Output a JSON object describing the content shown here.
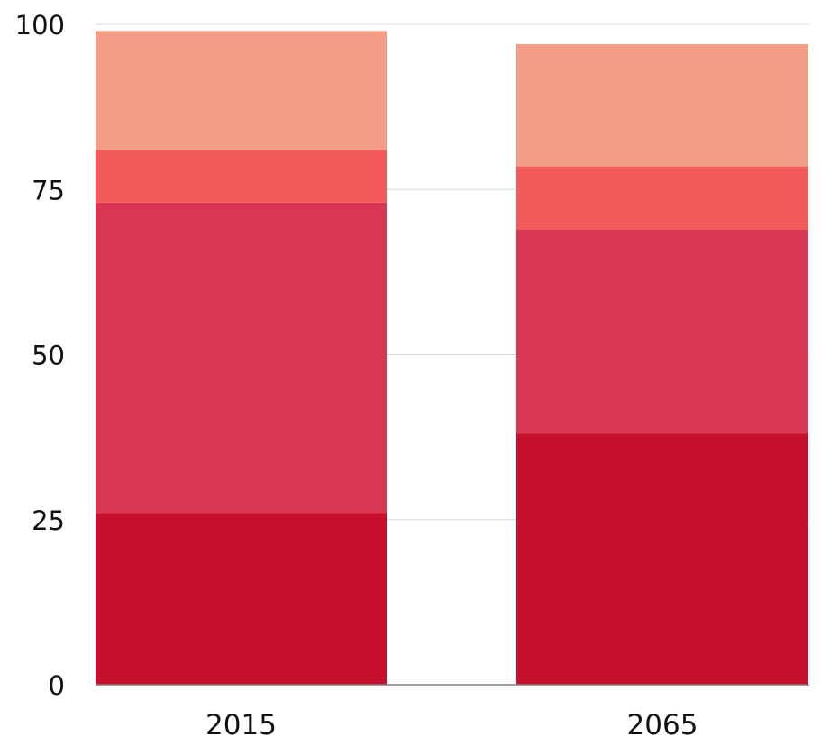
{
  "chart_data": {
    "type": "bar",
    "stacked": true,
    "title": "",
    "xlabel": "",
    "ylabel": "",
    "ylim": [
      0,
      100
    ],
    "yticks": [
      0,
      25,
      50,
      75,
      100
    ],
    "ytick_labels": [
      "0",
      "25",
      "50",
      "75",
      "100"
    ],
    "categories": [
      "2015",
      "2065"
    ],
    "grid": true,
    "legend": "none",
    "series": [
      {
        "color": "#c8102e",
        "values": [
          26,
          38
        ]
      },
      {
        "color": "#d93654",
        "values": [
          47,
          31
        ]
      },
      {
        "color": "#f45a5a",
        "values": [
          8,
          9.5
        ]
      },
      {
        "color": "#f39e84",
        "values": [
          18,
          18.5
        ]
      }
    ]
  }
}
